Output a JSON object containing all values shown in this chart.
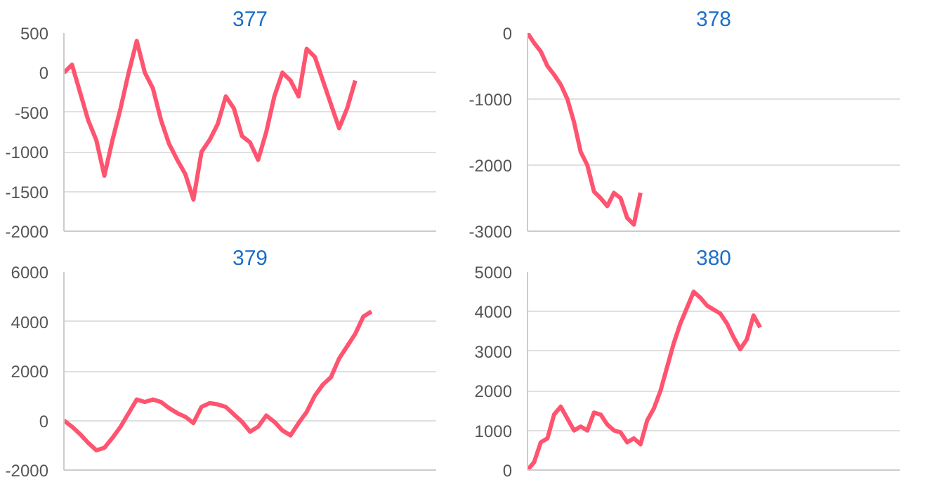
{
  "chart_data": [
    {
      "type": "line",
      "title": "377",
      "categories": [
        null,
        null,
        null,
        null,
        null,
        null,
        null,
        null,
        null,
        null,
        null,
        null,
        null,
        null,
        null,
        null,
        null,
        null,
        null,
        null,
        null,
        null,
        null,
        null,
        null,
        null,
        null,
        null,
        null,
        null,
        null,
        null,
        null,
        null,
        null,
        null,
        null,
        null,
        null,
        null,
        null,
        null,
        null,
        null,
        null,
        null,
        null
      ],
      "series": [
        {
          "color": "#ff5470",
          "values": [
            0,
            100,
            -250,
            -600,
            -850,
            -1300,
            -850,
            -450,
            0,
            400,
            0,
            -200,
            -600,
            -900,
            -1100,
            -1280,
            -1600,
            -1000,
            -850,
            -650,
            -300,
            -450,
            -800,
            -880,
            -1100,
            -750,
            -300,
            0,
            -100,
            -300,
            300,
            200,
            -100,
            -400,
            -700,
            -450,
            -100,
            null,
            null,
            null,
            null,
            null,
            null,
            null,
            null,
            null,
            null
          ]
        }
      ],
      "ylim": [
        -2000,
        500
      ],
      "yticks": [
        -2000,
        -1500,
        -1000,
        -500,
        0,
        500
      ],
      "grid": "y",
      "tick_labels": "y",
      "marker": "none",
      "line_style": "solid"
    },
    {
      "type": "line",
      "title": "378",
      "categories": [
        null,
        null,
        null,
        null,
        null,
        null,
        null,
        null,
        null,
        null,
        null,
        null,
        null,
        null,
        null,
        null,
        null,
        null,
        null,
        null,
        null,
        null,
        null,
        null,
        null,
        null,
        null,
        null,
        null,
        null,
        null,
        null,
        null,
        null,
        null,
        null,
        null,
        null,
        null,
        null,
        null,
        null,
        null,
        null,
        null,
        null,
        null,
        null,
        null,
        null,
        null,
        null,
        null,
        null,
        null,
        null,
        null
      ],
      "series": [
        {
          "color": "#ff5470",
          "values": [
            0,
            -150,
            -280,
            -500,
            -630,
            -780,
            -1000,
            -1350,
            -1800,
            -2000,
            -2400,
            -2500,
            -2620,
            -2420,
            -2500,
            -2800,
            -2900,
            -2420,
            null,
            null,
            null,
            null,
            null,
            null,
            null,
            null,
            null,
            null,
            null,
            null,
            null,
            null,
            null,
            null,
            null,
            null,
            null,
            null,
            null,
            null,
            null,
            null,
            null,
            null,
            null,
            null,
            null,
            null,
            null,
            null,
            null,
            null,
            null,
            null,
            null,
            null,
            null
          ]
        }
      ],
      "ylim": [
        -3000,
        0
      ],
      "yticks": [
        -3000,
        -2000,
        -1000,
        0
      ],
      "grid": "y",
      "tick_labels": "y",
      "marker": "none",
      "line_style": "solid"
    },
    {
      "type": "line",
      "title": "379",
      "categories": [
        null,
        null,
        null,
        null,
        null,
        null,
        null,
        null,
        null,
        null,
        null,
        null,
        null,
        null,
        null,
        null,
        null,
        null,
        null,
        null,
        null,
        null,
        null,
        null,
        null,
        null,
        null,
        null,
        null,
        null,
        null,
        null,
        null,
        null,
        null,
        null,
        null,
        null,
        null,
        null,
        null,
        null,
        null,
        null,
        null,
        null,
        null
      ],
      "series": [
        {
          "color": "#ff5470",
          "values": [
            0,
            -250,
            -550,
            -900,
            -1200,
            -1100,
            -700,
            -250,
            300,
            850,
            750,
            850,
            750,
            500,
            300,
            150,
            -100,
            550,
            700,
            650,
            550,
            250,
            -50,
            -450,
            -250,
            200,
            -50,
            -400,
            -600,
            -100,
            350,
            1000,
            1450,
            1750,
            2500,
            3000,
            3500,
            4200,
            4400,
            null,
            null,
            null,
            null,
            null,
            null,
            null,
            null
          ]
        }
      ],
      "ylim": [
        -2000,
        6000
      ],
      "yticks": [
        -2000,
        0,
        2000,
        4000,
        6000
      ],
      "grid": "y",
      "tick_labels": "y",
      "marker": "none",
      "line_style": "solid"
    },
    {
      "type": "line",
      "title": "380",
      "categories": [
        null,
        null,
        null,
        null,
        null,
        null,
        null,
        null,
        null,
        null,
        null,
        null,
        null,
        null,
        null,
        null,
        null,
        null,
        null,
        null,
        null,
        null,
        null,
        null,
        null,
        null,
        null,
        null,
        null,
        null,
        null,
        null,
        null,
        null,
        null,
        null,
        null,
        null,
        null,
        null,
        null,
        null,
        null,
        null,
        null,
        null,
        null,
        null,
        null,
        null,
        null,
        null,
        null,
        null,
        null,
        null,
        null
      ],
      "series": [
        {
          "color": "#ff5470",
          "values": [
            0,
            200,
            700,
            800,
            1400,
            1600,
            1300,
            1000,
            1100,
            1000,
            1450,
            1400,
            1150,
            1000,
            950,
            700,
            800,
            650,
            1250,
            1550,
            2000,
            2600,
            3200,
            3700,
            4100,
            4500,
            4350,
            4150,
            4050,
            3950,
            3700,
            3350,
            3050,
            3300,
            3900,
            3600,
            null,
            null,
            null,
            null,
            null,
            null,
            null,
            null,
            null,
            null,
            null,
            null,
            null,
            null,
            null,
            null,
            null,
            null,
            null,
            null,
            null
          ]
        }
      ],
      "ylim": [
        0,
        5000
      ],
      "yticks": [
        0,
        1000,
        2000,
        3000,
        4000,
        5000
      ],
      "grid": "y",
      "tick_labels": "y",
      "marker": "none",
      "line_style": "solid"
    }
  ]
}
